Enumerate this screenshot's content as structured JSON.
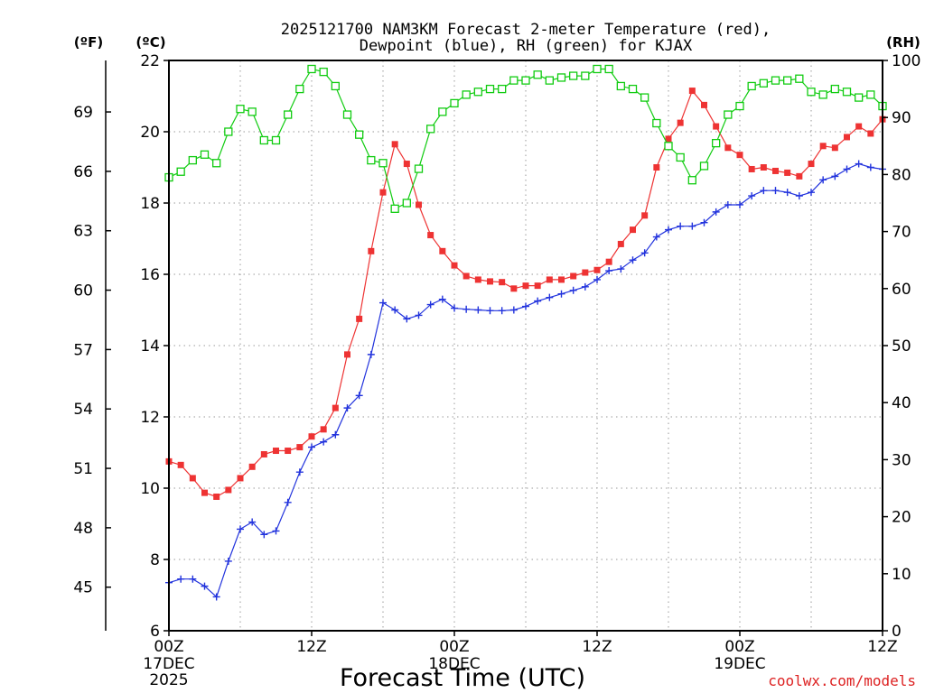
{
  "chart_data": {
    "type": "line",
    "title_line1": "2025121700 NAM3KM Forecast 2-meter Temperature (red),",
    "title_line2": "Dewpoint (blue), RH (green) for KJAX",
    "xlabel": "Forecast Time (UTC)",
    "credit": "coolwx.com/models",
    "axis_units": {
      "fahrenheit": "(ºF)",
      "celsius": "(ºC)",
      "rh": "(RH)"
    },
    "celsius_axis": {
      "ylim": [
        6,
        22
      ],
      "ticks": [
        6,
        8,
        10,
        12,
        14,
        16,
        18,
        20,
        22
      ]
    },
    "fahrenheit_axis": {
      "ticks": [
        45,
        48,
        51,
        54,
        57,
        60,
        63,
        66,
        69
      ]
    },
    "rh_axis": {
      "ylim": [
        0,
        100
      ],
      "ticks": [
        0,
        10,
        20,
        30,
        40,
        50,
        60,
        70,
        80,
        90,
        100
      ]
    },
    "x_range_hours": [
      0,
      60
    ],
    "x_ticks": [
      {
        "hour": 0,
        "label": "00Z",
        "sub1": "17DEC",
        "sub2": "2025"
      },
      {
        "hour": 12,
        "label": "12Z",
        "sub1": "",
        "sub2": ""
      },
      {
        "hour": 24,
        "label": "00Z",
        "sub1": "18DEC",
        "sub2": ""
      },
      {
        "hour": 36,
        "label": "12Z",
        "sub1": "",
        "sub2": ""
      },
      {
        "hour": 48,
        "label": "00Z",
        "sub1": "19DEC",
        "sub2": ""
      },
      {
        "hour": 60,
        "label": "12Z",
        "sub1": "",
        "sub2": ""
      }
    ],
    "colors": {
      "temperature": "#ee3333",
      "dewpoint": "#2233dd",
      "rh": "#11cc11",
      "grid": "#999999"
    },
    "series": [
      {
        "name": "Temperature (°C)",
        "axis": "celsius",
        "marker": "filled-square",
        "values": [
          10.75,
          10.65,
          10.28,
          9.87,
          9.76,
          9.95,
          10.28,
          10.6,
          10.95,
          11.05,
          11.05,
          11.15,
          11.45,
          11.65,
          12.25,
          13.75,
          14.75,
          16.65,
          18.3,
          19.65,
          19.1,
          17.95,
          17.1,
          16.65,
          16.25,
          15.95,
          15.85,
          15.8,
          15.78,
          15.6,
          15.68,
          15.68,
          15.85,
          15.85,
          15.95,
          16.05,
          16.12,
          16.35,
          16.85,
          17.25,
          17.65,
          19.0,
          19.8,
          20.25,
          21.15,
          20.75,
          20.15,
          19.55,
          19.35,
          18.95,
          19.0,
          18.9,
          18.85,
          18.75,
          19.1,
          19.6,
          19.55,
          19.85,
          20.15,
          19.95,
          20.35
        ]
      },
      {
        "name": "Dewpoint (°C)",
        "axis": "celsius",
        "marker": "plus",
        "values": [
          7.35,
          7.45,
          7.45,
          7.25,
          6.95,
          7.95,
          8.85,
          9.05,
          8.7,
          8.8,
          9.6,
          10.45,
          11.15,
          11.3,
          11.5,
          12.25,
          12.6,
          13.75,
          15.2,
          15.0,
          14.75,
          14.85,
          15.15,
          15.3,
          15.05,
          15.02,
          15.0,
          14.98,
          14.98,
          15.0,
          15.1,
          15.25,
          15.35,
          15.45,
          15.55,
          15.65,
          15.85,
          16.1,
          16.15,
          16.4,
          16.6,
          17.05,
          17.25,
          17.35,
          17.35,
          17.45,
          17.75,
          17.95,
          17.95,
          18.2,
          18.35,
          18.35,
          18.3,
          18.2,
          18.3,
          18.65,
          18.75,
          18.95,
          19.1,
          19.0,
          18.95
        ]
      },
      {
        "name": "RH (%)",
        "axis": "rh",
        "marker": "open-square",
        "values": [
          79.5,
          80.5,
          82.5,
          83.5,
          82.0,
          87.5,
          91.5,
          91.0,
          86.0,
          86.0,
          90.5,
          95.0,
          98.5,
          98.0,
          95.5,
          90.5,
          87.0,
          82.5,
          82.0,
          74.0,
          75.0,
          81.0,
          88.0,
          91.0,
          92.5,
          94.0,
          94.5,
          95.0,
          95.0,
          96.5,
          96.5,
          97.5,
          96.5,
          97.0,
          97.3,
          97.3,
          98.5,
          98.5,
          95.5,
          95.0,
          93.5,
          89.0,
          85.0,
          83.0,
          79.0,
          81.5,
          85.5,
          90.5,
          92.0,
          95.5,
          96.0,
          96.5,
          96.5,
          96.8,
          94.5,
          94.0,
          95.0,
          94.5,
          93.5,
          94.0,
          92.0
        ]
      }
    ]
  }
}
